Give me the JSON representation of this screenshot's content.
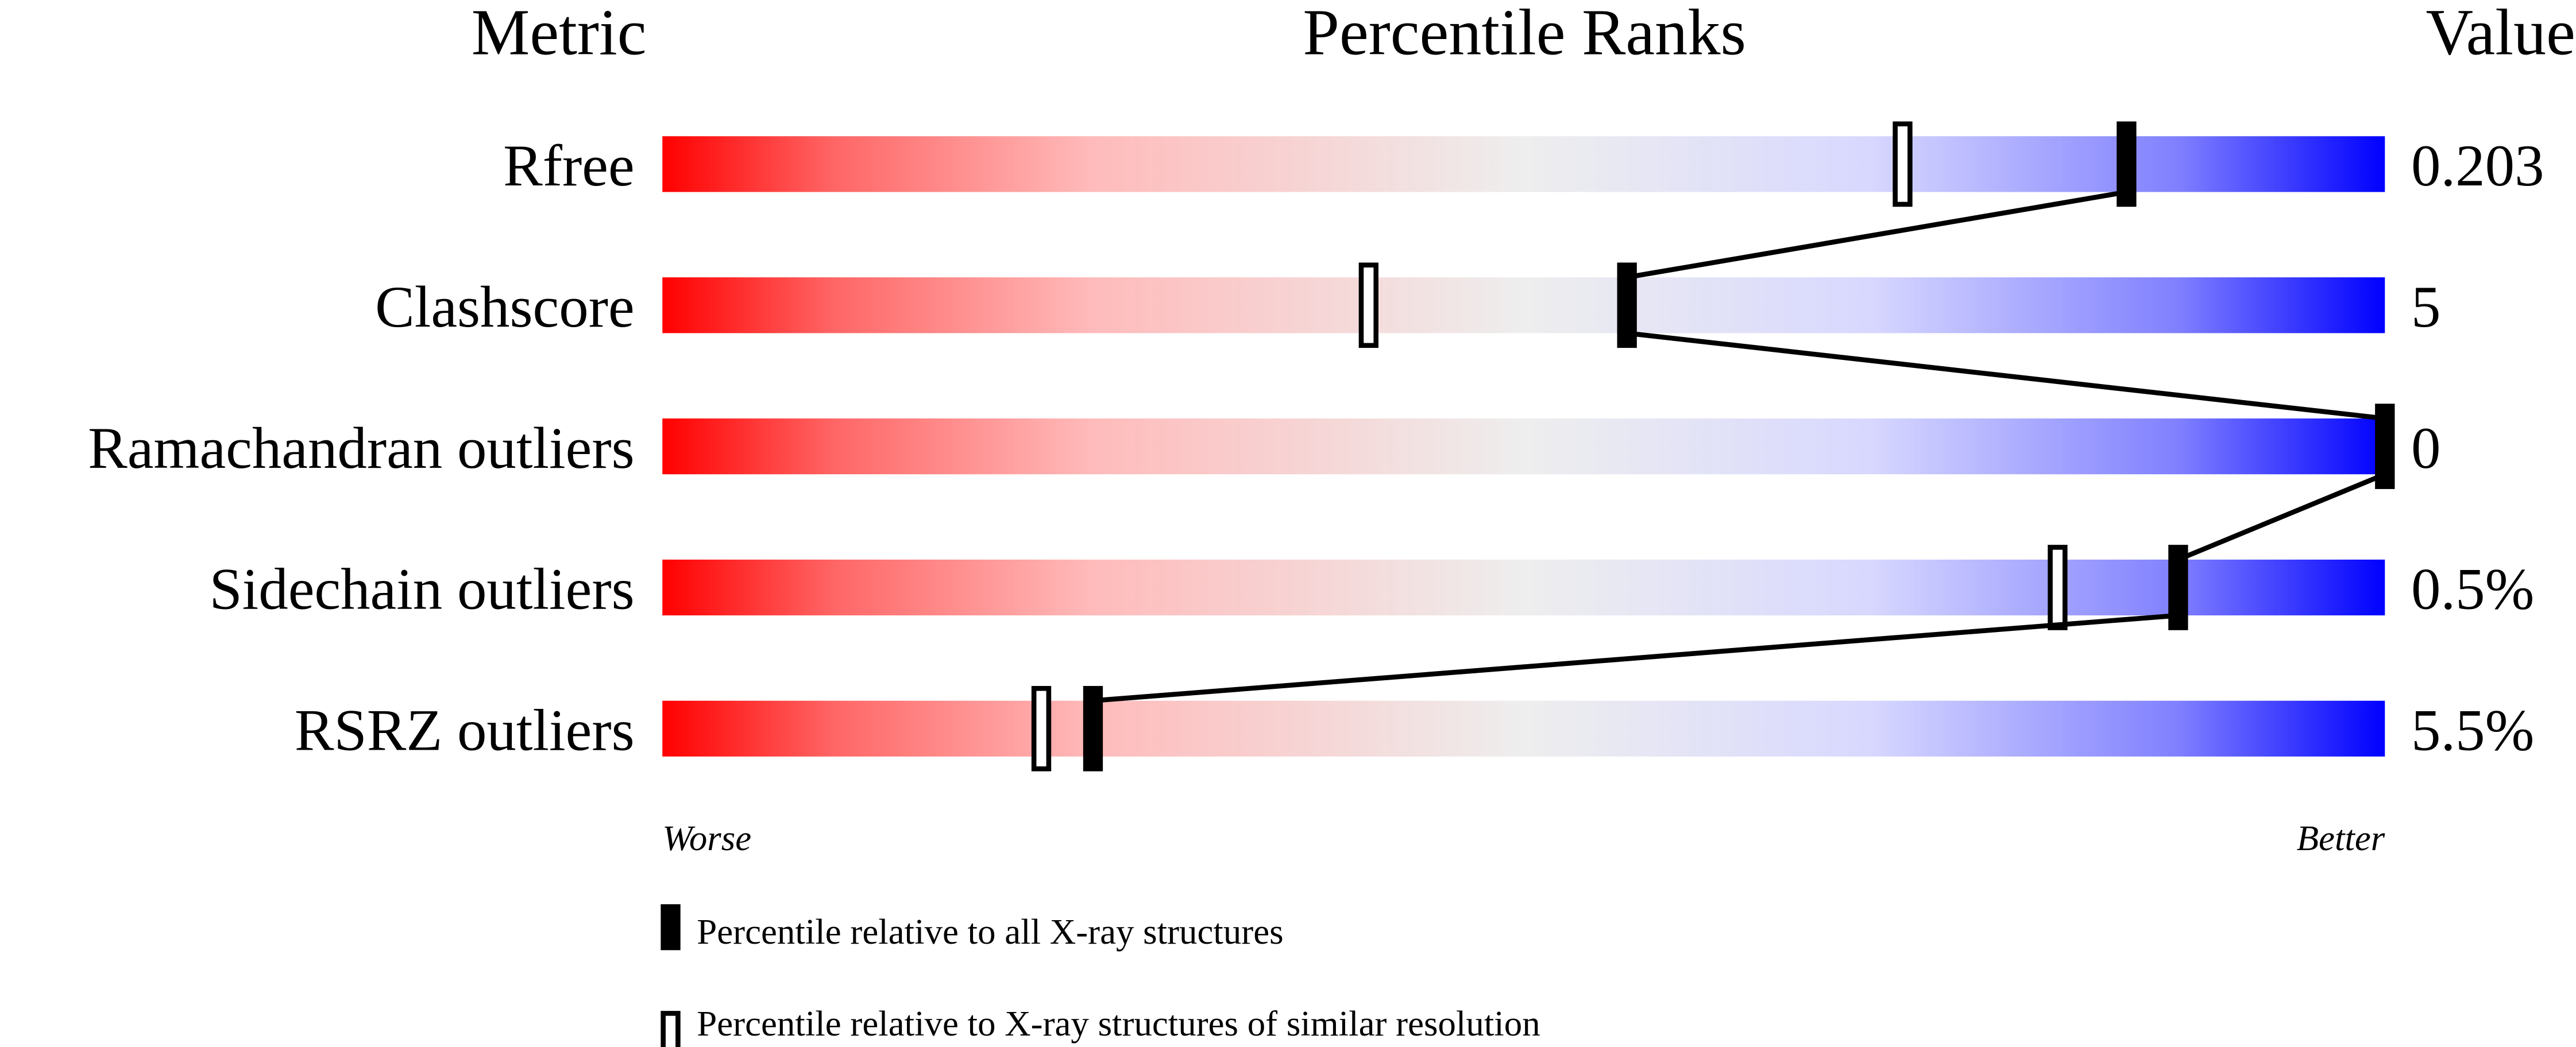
{
  "chart_data": {
    "type": "percentile-slider",
    "headers": {
      "metric": "Metric",
      "ranks": "Percentile Ranks",
      "value": "Value"
    },
    "xlim": [
      0,
      100
    ],
    "axis_labels": {
      "left": "Worse",
      "right": "Better"
    },
    "gradient_colors": [
      "#ff0000",
      "#eeeeee",
      "#0000ff"
    ],
    "rows": [
      {
        "metric": "Rfree",
        "value": "0.203",
        "percentile_all": 85,
        "percentile_similar": 72
      },
      {
        "metric": "Clashscore",
        "value": "5",
        "percentile_all": 56,
        "percentile_similar": 41
      },
      {
        "metric": "Ramachandran outliers",
        "value": "0",
        "percentile_all": 100,
        "percentile_similar": 100
      },
      {
        "metric": "Sidechain outliers",
        "value": "0.5%",
        "percentile_all": 88,
        "percentile_similar": 81
      },
      {
        "metric": "RSRZ outliers",
        "value": "5.5%",
        "percentile_all": 25,
        "percentile_similar": 22
      }
    ],
    "legend": {
      "all": "Percentile relative to all X-ray structures",
      "similar": "Percentile relative to X-ray structures of similar resolution"
    },
    "legend_placement": "bottom"
  }
}
